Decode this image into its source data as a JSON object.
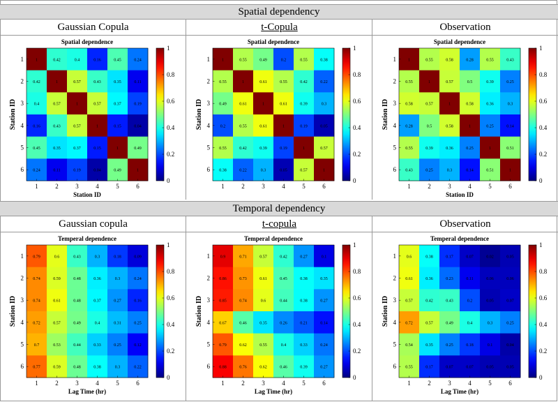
{
  "sections": {
    "spatial": {
      "title": "Spatial dependency",
      "columns": [
        "Gaussian Copula",
        "t-Copula",
        "Observation"
      ]
    },
    "temporal": {
      "title": "Temporal dependency",
      "columns": [
        "Gaussian copula",
        "t-copula",
        "Observation"
      ]
    }
  },
  "chart_data": [
    {
      "type": "heatmap",
      "title": "Spatial dependence",
      "xlabel": "Station ID",
      "ylabel": "Station ID",
      "x": [
        1,
        2,
        3,
        4,
        5,
        6
      ],
      "y": [
        1,
        2,
        3,
        4,
        5,
        6
      ],
      "colorbar": {
        "min": 0,
        "max": 1,
        "ticks": [
          "0",
          "0.2",
          "0.4",
          "0.6",
          "0.8",
          "1"
        ]
      },
      "values": [
        [
          1,
          0.42,
          0.4,
          0.16,
          0.45,
          0.24
        ],
        [
          0.42,
          1,
          0.57,
          0.43,
          0.35,
          0.11
        ],
        [
          0.4,
          0.57,
          1,
          0.57,
          0.37,
          0.19
        ],
        [
          0.16,
          0.43,
          0.57,
          1,
          0.15,
          0.04
        ],
        [
          0.45,
          0.35,
          0.37,
          0.15,
          1,
          0.49
        ],
        [
          0.24,
          0.11,
          0.19,
          0.04,
          0.49,
          1
        ]
      ]
    },
    {
      "type": "heatmap",
      "title": "Spatial dependence",
      "xlabel": "",
      "ylabel": "Station ID",
      "x": [
        1,
        2,
        3,
        4,
        5,
        6
      ],
      "y": [
        1,
        2,
        3,
        4,
        5,
        6
      ],
      "colorbar": {
        "min": 0,
        "max": 1,
        "ticks": [
          "0",
          "0.2",
          "0.4",
          "0.6",
          "0.8",
          "1"
        ]
      },
      "values": [
        [
          1,
          0.55,
          0.49,
          0.2,
          0.55,
          0.38
        ],
        [
          0.55,
          1,
          0.61,
          0.55,
          0.42,
          0.22
        ],
        [
          0.49,
          0.61,
          1,
          0.61,
          0.39,
          0.3
        ],
        [
          0.2,
          0.55,
          0.61,
          1,
          0.19,
          0.05
        ],
        [
          0.55,
          0.42,
          0.39,
          0.19,
          1,
          0.57
        ],
        [
          0.38,
          0.22,
          0.3,
          0.05,
          0.57,
          1
        ]
      ]
    },
    {
      "type": "heatmap",
      "title": "Spatial dependence",
      "xlabel": "Station ID",
      "ylabel": "Station ID",
      "x": [
        1,
        2,
        3,
        4,
        5,
        6
      ],
      "y": [
        1,
        2,
        3,
        4,
        5,
        6
      ],
      "colorbar": {
        "min": 0,
        "max": 1,
        "ticks": [
          "0",
          "0.2",
          "0.4",
          "0.6",
          "0.8",
          "1"
        ]
      },
      "values": [
        [
          1,
          0.55,
          0.58,
          0.28,
          0.55,
          0.43
        ],
        [
          0.55,
          1,
          0.57,
          0.5,
          0.39,
          0.25
        ],
        [
          0.58,
          0.57,
          1,
          0.58,
          0.36,
          0.3
        ],
        [
          0.28,
          0.5,
          0.58,
          1,
          0.25,
          0.14
        ],
        [
          0.55,
          0.39,
          0.36,
          0.25,
          1,
          0.51
        ],
        [
          0.43,
          0.25,
          0.3,
          0.14,
          0.51,
          1
        ]
      ]
    },
    {
      "type": "heatmap",
      "title": "Temperal dependence",
      "xlabel": "Lag Time (hr)",
      "ylabel": "Station ID",
      "x": [
        1,
        2,
        3,
        4,
        5,
        6
      ],
      "y": [
        1,
        2,
        3,
        4,
        5,
        6
      ],
      "colorbar": {
        "min": 0,
        "max": 1,
        "ticks": [
          "0",
          "0.2",
          "0.4",
          "0.6",
          "0.8",
          "1"
        ]
      },
      "values": [
        [
          0.79,
          0.6,
          0.43,
          0.3,
          0.18,
          0.09
        ],
        [
          0.74,
          0.59,
          0.48,
          0.36,
          0.3,
          0.24
        ],
        [
          0.74,
          0.61,
          0.48,
          0.37,
          0.27,
          0.16
        ],
        [
          0.72,
          0.57,
          0.49,
          0.4,
          0.31,
          0.25
        ],
        [
          0.7,
          0.53,
          0.44,
          0.33,
          0.25,
          0.12
        ],
        [
          0.77,
          0.59,
          0.48,
          0.38,
          0.3,
          0.22
        ]
      ]
    },
    {
      "type": "heatmap",
      "title": "Temperal dependence",
      "xlabel": "Lag Time (hr)",
      "ylabel": "Station ID",
      "x": [
        1,
        2,
        3,
        4,
        5,
        6
      ],
      "y": [
        1,
        2,
        3,
        4,
        5,
        6
      ],
      "colorbar": {
        "min": 0,
        "max": 1,
        "ticks": [
          "0",
          "0.2",
          "0.4",
          "0.6",
          "0.8",
          "1"
        ]
      },
      "values": [
        [
          0.9,
          0.71,
          0.57,
          0.42,
          0.27,
          0.1
        ],
        [
          0.86,
          0.73,
          0.61,
          0.45,
          0.38,
          0.35
        ],
        [
          0.85,
          0.74,
          0.6,
          0.44,
          0.38,
          0.27
        ],
        [
          0.67,
          0.46,
          0.35,
          0.26,
          0.21,
          0.14
        ],
        [
          0.79,
          0.62,
          0.55,
          0.4,
          0.33,
          0.24
        ],
        [
          0.88,
          0.76,
          0.62,
          0.46,
          0.39,
          0.27
        ]
      ]
    },
    {
      "type": "heatmap",
      "title": "Temperal dependence",
      "xlabel": "Lag Time (hr)",
      "ylabel": "Station ID",
      "x": [
        1,
        2,
        3,
        4,
        5,
        6
      ],
      "y": [
        1,
        2,
        3,
        4,
        5,
        6
      ],
      "colorbar": {
        "min": 0,
        "max": 1,
        "ticks": [
          "0",
          "0.2",
          "0.4",
          "0.6",
          "0.8",
          "1"
        ]
      },
      "values": [
        [
          0.6,
          0.38,
          0.17,
          0.07,
          0.02,
          0.05
        ],
        [
          0.61,
          0.36,
          0.23,
          0.11,
          0.06,
          0.06
        ],
        [
          0.57,
          0.42,
          0.43,
          0.2,
          0.05,
          0.07
        ],
        [
          0.72,
          0.57,
          0.49,
          0.4,
          0.3,
          0.25
        ],
        [
          0.54,
          0.35,
          0.25,
          0.18,
          0.1,
          0.04
        ],
        [
          0.55,
          0.17,
          0.07,
          0.07,
          0.05,
          0.05
        ]
      ]
    }
  ]
}
